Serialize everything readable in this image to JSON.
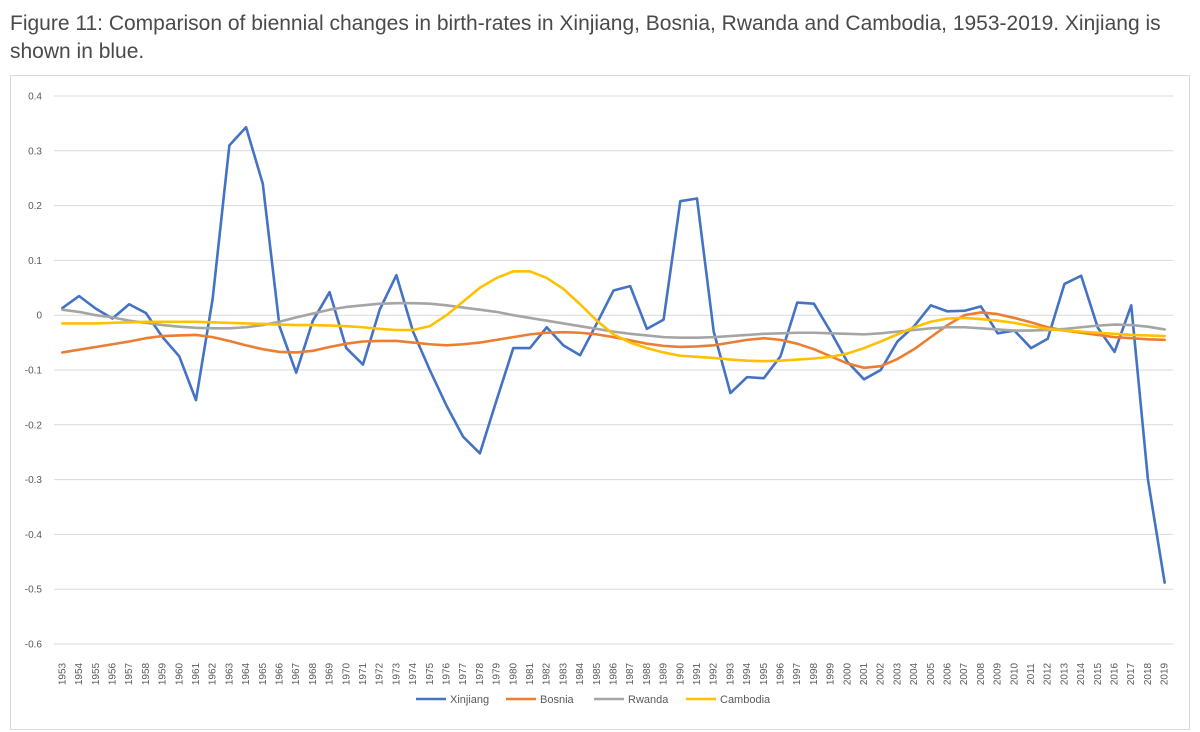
{
  "caption": "Figure 11: Comparison of biennial changes in birth-rates in Xinjiang, Bosnia, Rwanda and Cambodia, 1953-2019. Xinjiang is shown in blue.",
  "chart_data": {
    "type": "line",
    "title": "",
    "xlabel": "",
    "ylabel": "",
    "ylim": [
      -0.6,
      0.4
    ],
    "yticks": [
      0.4,
      0.3,
      0.2,
      0.1,
      0,
      -0.1,
      -0.2,
      -0.3,
      -0.4,
      -0.5,
      -0.6
    ],
    "ytick_labels": [
      "0.4",
      "0.3",
      "0.2",
      "0.1",
      "0",
      "-0.1",
      "-0.2",
      "-0.3",
      "-0.4",
      "-0.5",
      "-0.6"
    ],
    "grid": "horizontal",
    "legend_position": "bottom",
    "x": [
      "1953",
      "1954",
      "1955",
      "1956",
      "1957",
      "1958",
      "1959",
      "1960",
      "1961",
      "1962",
      "1963",
      "1964",
      "1965",
      "1966",
      "1967",
      "1968",
      "1969",
      "1970",
      "1971",
      "1972",
      "1973",
      "1974",
      "1975",
      "1976",
      "1977",
      "1978",
      "1979",
      "1980",
      "1981",
      "1982",
      "1983",
      "1984",
      "1985",
      "1986",
      "1987",
      "1988",
      "1989",
      "1990",
      "1991",
      "1992",
      "1993",
      "1994",
      "1995",
      "1996",
      "1997",
      "1998",
      "1999",
      "2000",
      "2001",
      "2002",
      "2003",
      "2004",
      "2005",
      "2006",
      "2007",
      "2008",
      "2009",
      "2010",
      "2011",
      "2012",
      "2013",
      "2014",
      "2015",
      "2016",
      "2017",
      "2018",
      "2019"
    ],
    "series": [
      {
        "name": "Xinjiang",
        "color": "#4472c4",
        "values": [
          0.013,
          0.035,
          0.012,
          -0.006,
          0.02,
          0.004,
          -0.04,
          -0.075,
          -0.155,
          0.03,
          0.31,
          0.343,
          0.24,
          -0.02,
          -0.105,
          -0.01,
          0.042,
          -0.06,
          -0.09,
          0.01,
          0.073,
          -0.03,
          -0.1,
          -0.165,
          -0.222,
          -0.252,
          -0.155,
          -0.06,
          -0.06,
          -0.022,
          -0.055,
          -0.073,
          -0.015,
          0.045,
          0.053,
          -0.025,
          -0.008,
          0.208,
          0.213,
          -0.03,
          -0.142,
          -0.113,
          -0.115,
          -0.075,
          0.023,
          0.021,
          -0.03,
          -0.085,
          -0.117,
          -0.1,
          -0.048,
          -0.02,
          0.018,
          0.007,
          0.008,
          0.016,
          -0.033,
          -0.028,
          -0.06,
          -0.043,
          0.057,
          0.072,
          -0.023,
          -0.067,
          0.018,
          -0.3,
          -0.488
        ]
      },
      {
        "name": "Bosnia",
        "color": "#ed7d31",
        "values": [
          -0.068,
          -0.063,
          -0.058,
          -0.053,
          -0.048,
          -0.042,
          -0.038,
          -0.037,
          -0.036,
          -0.04,
          -0.047,
          -0.055,
          -0.062,
          -0.067,
          -0.068,
          -0.065,
          -0.058,
          -0.052,
          -0.048,
          -0.047,
          -0.047,
          -0.05,
          -0.053,
          -0.055,
          -0.053,
          -0.05,
          -0.045,
          -0.04,
          -0.035,
          -0.032,
          -0.031,
          -0.032,
          -0.035,
          -0.04,
          -0.046,
          -0.052,
          -0.056,
          -0.058,
          -0.057,
          -0.055,
          -0.05,
          -0.045,
          -0.042,
          -0.045,
          -0.052,
          -0.062,
          -0.075,
          -0.088,
          -0.096,
          -0.093,
          -0.08,
          -0.062,
          -0.04,
          -0.018,
          0,
          0.005,
          0.002,
          -0.005,
          -0.013,
          -0.022,
          -0.028,
          -0.032,
          -0.036,
          -0.04,
          -0.042,
          -0.044,
          -0.045
        ]
      },
      {
        "name": "Rwanda",
        "color": "#a5a5a5",
        "values": [
          0.01,
          0.006,
          0,
          -0.004,
          -0.01,
          -0.014,
          -0.018,
          -0.021,
          -0.023,
          -0.024,
          -0.024,
          -0.022,
          -0.018,
          -0.012,
          -0.004,
          0.003,
          0.01,
          0.015,
          0.018,
          0.021,
          0.022,
          0.022,
          0.021,
          0.018,
          0.014,
          0.01,
          0.006,
          0,
          -0.005,
          -0.01,
          -0.015,
          -0.02,
          -0.025,
          -0.03,
          -0.034,
          -0.037,
          -0.04,
          -0.041,
          -0.041,
          -0.04,
          -0.038,
          -0.036,
          -0.034,
          -0.033,
          -0.032,
          -0.032,
          -0.033,
          -0.034,
          -0.035,
          -0.033,
          -0.03,
          -0.027,
          -0.024,
          -0.022,
          -0.022,
          -0.024,
          -0.026,
          -0.028,
          -0.028,
          -0.027,
          -0.025,
          -0.022,
          -0.019,
          -0.017,
          -0.018,
          -0.021,
          -0.026
        ]
      },
      {
        "name": "Cambodia",
        "color": "#ffc000",
        "values": [
          -0.015,
          -0.015,
          -0.015,
          -0.014,
          -0.013,
          -0.012,
          -0.012,
          -0.012,
          -0.012,
          -0.013,
          -0.014,
          -0.015,
          -0.016,
          -0.017,
          -0.018,
          -0.018,
          -0.019,
          -0.02,
          -0.022,
          -0.025,
          -0.027,
          -0.027,
          -0.02,
          0,
          0.025,
          0.05,
          0.068,
          0.08,
          0.08,
          0.068,
          0.048,
          0.02,
          -0.01,
          -0.035,
          -0.05,
          -0.06,
          -0.068,
          -0.074,
          -0.076,
          -0.078,
          -0.081,
          -0.083,
          -0.084,
          -0.083,
          -0.081,
          -0.079,
          -0.076,
          -0.07,
          -0.06,
          -0.048,
          -0.035,
          -0.022,
          -0.012,
          -0.006,
          -0.005,
          -0.007,
          -0.01,
          -0.014,
          -0.02,
          -0.025,
          -0.028,
          -0.03,
          -0.032,
          -0.034,
          -0.036,
          -0.037,
          -0.038
        ]
      }
    ]
  }
}
